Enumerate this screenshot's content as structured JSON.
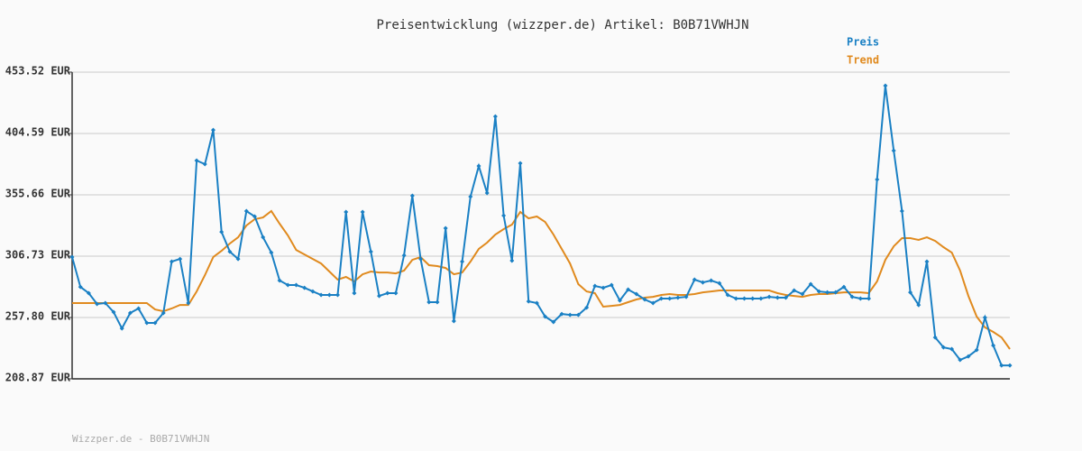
{
  "chart_data": {
    "type": "line",
    "title": "Preisentwicklung (wizzper.de) Artikel: B0B71VWHJN",
    "footer": "Wizzper.de - B0B71VWHJN",
    "categories": [
      null,
      null,
      null,
      null,
      null,
      null,
      null,
      null,
      null,
      null,
      null,
      null,
      null,
      null,
      null,
      null,
      null,
      null,
      null,
      null,
      null,
      null,
      null,
      null,
      null,
      null,
      null,
      null,
      null,
      null,
      null,
      null,
      null,
      null,
      null,
      null,
      null,
      null,
      null,
      null,
      null,
      null,
      null,
      null,
      null,
      null,
      null,
      null,
      null,
      null,
      null,
      null,
      null,
      null,
      null,
      null,
      null,
      null,
      null,
      null,
      null,
      null,
      null,
      null,
      null,
      null,
      null,
      null,
      null,
      null,
      null,
      null,
      null,
      null,
      null,
      null,
      null,
      null,
      null,
      null,
      null,
      null,
      null,
      null,
      null,
      null,
      null,
      null,
      null,
      null,
      null,
      null,
      null,
      null,
      null,
      null,
      null,
      null,
      null,
      null,
      null,
      null,
      null,
      null,
      null,
      null,
      null,
      null,
      null,
      null,
      null,
      null,
      null,
      null
    ],
    "series": [
      {
        "name": "Preis",
        "color": "#1a80c4",
        "markers": true,
        "values": [
          306.0,
          282.2,
          277.2,
          268.6,
          269.3,
          262.1,
          249.1,
          261.4,
          265.0,
          253.5,
          253.5,
          261.4,
          302.4,
          304.5,
          269.3,
          383.0,
          380.1,
          407.4,
          326.1,
          310.3,
          304.5,
          342.7,
          338.4,
          321.8,
          309.6,
          287.3,
          283.7,
          283.7,
          281.5,
          278.6,
          275.8,
          275.8,
          275.8,
          342.0,
          277.2,
          342.0,
          310.3,
          275.0,
          277.2,
          277.2,
          307.4,
          354.9,
          304.5,
          270.0,
          270.0,
          329.0,
          254.9,
          302.4,
          354.2,
          378.7,
          357.1,
          418.2,
          339.1,
          303.1,
          380.8,
          270.7,
          269.3,
          258.5,
          254.2,
          260.6,
          259.9,
          259.9,
          265.7,
          283.0,
          281.5,
          283.7,
          271.4,
          280.1,
          276.5,
          272.2,
          269.3,
          272.9,
          272.9,
          273.6,
          274.3,
          288.0,
          285.8,
          287.3,
          285.1,
          275.8,
          272.9,
          272.9,
          272.9,
          272.9,
          274.3,
          273.6,
          273.6,
          279.4,
          276.5,
          284.4,
          278.6,
          277.9,
          277.9,
          282.2,
          274.3,
          272.9,
          272.9,
          367.9,
          442.7,
          390.9,
          342.7,
          277.9,
          267.8,
          302.4,
          241.9,
          234.0,
          232.6,
          224.0,
          226.8,
          231.9,
          257.8,
          235.5,
          219.6,
          219.6
        ]
      },
      {
        "name": "Trend",
        "color": "#e08a1e",
        "markers": false,
        "values": [
          269.3,
          269.3,
          269.3,
          269.3,
          269.3,
          269.3,
          269.3,
          269.3,
          269.3,
          269.3,
          264.2,
          262.8,
          265.0,
          267.8,
          267.8,
          278.6,
          291.6,
          306.0,
          311.0,
          316.8,
          321.8,
          331.2,
          336.2,
          337.6,
          342.7,
          332.6,
          323.3,
          311.7,
          308.1,
          304.5,
          300.9,
          294.5,
          288.0,
          290.2,
          286.6,
          292.3,
          294.5,
          293.7,
          293.7,
          293.0,
          295.2,
          303.8,
          306.0,
          299.5,
          298.8,
          297.3,
          292.3,
          293.7,
          302.4,
          312.5,
          317.5,
          324.0,
          328.3,
          331.9,
          342.0,
          336.9,
          338.4,
          334.0,
          324.0,
          312.5,
          300.9,
          284.4,
          278.6,
          277.2,
          266.4,
          267.1,
          267.8,
          270.0,
          272.2,
          273.6,
          274.3,
          275.8,
          276.5,
          275.8,
          275.8,
          276.5,
          277.9,
          278.6,
          279.4,
          279.4,
          279.4,
          279.4,
          279.4,
          279.4,
          279.4,
          277.2,
          275.8,
          275.0,
          274.3,
          275.8,
          276.5,
          276.5,
          277.2,
          277.9,
          277.9,
          277.9,
          277.2,
          286.6,
          303.8,
          314.6,
          321.1,
          321.1,
          319.7,
          321.8,
          318.9,
          313.9,
          309.6,
          295.2,
          275.0,
          258.5,
          249.9,
          246.3,
          241.9,
          232.6
        ]
      }
    ],
    "ylim": [
      208.87,
      453.52
    ],
    "yticks": [
      {
        "value": 208.87,
        "label": "208.87 EUR"
      },
      {
        "value": 257.8,
        "label": "257.80 EUR"
      },
      {
        "value": 306.73,
        "label": "306.73 EUR"
      },
      {
        "value": 355.66,
        "label": "355.66 EUR"
      },
      {
        "value": 404.59,
        "label": "404.59 EUR"
      },
      {
        "value": 453.52,
        "label": "453.52 EUR"
      }
    ],
    "grid": true
  }
}
